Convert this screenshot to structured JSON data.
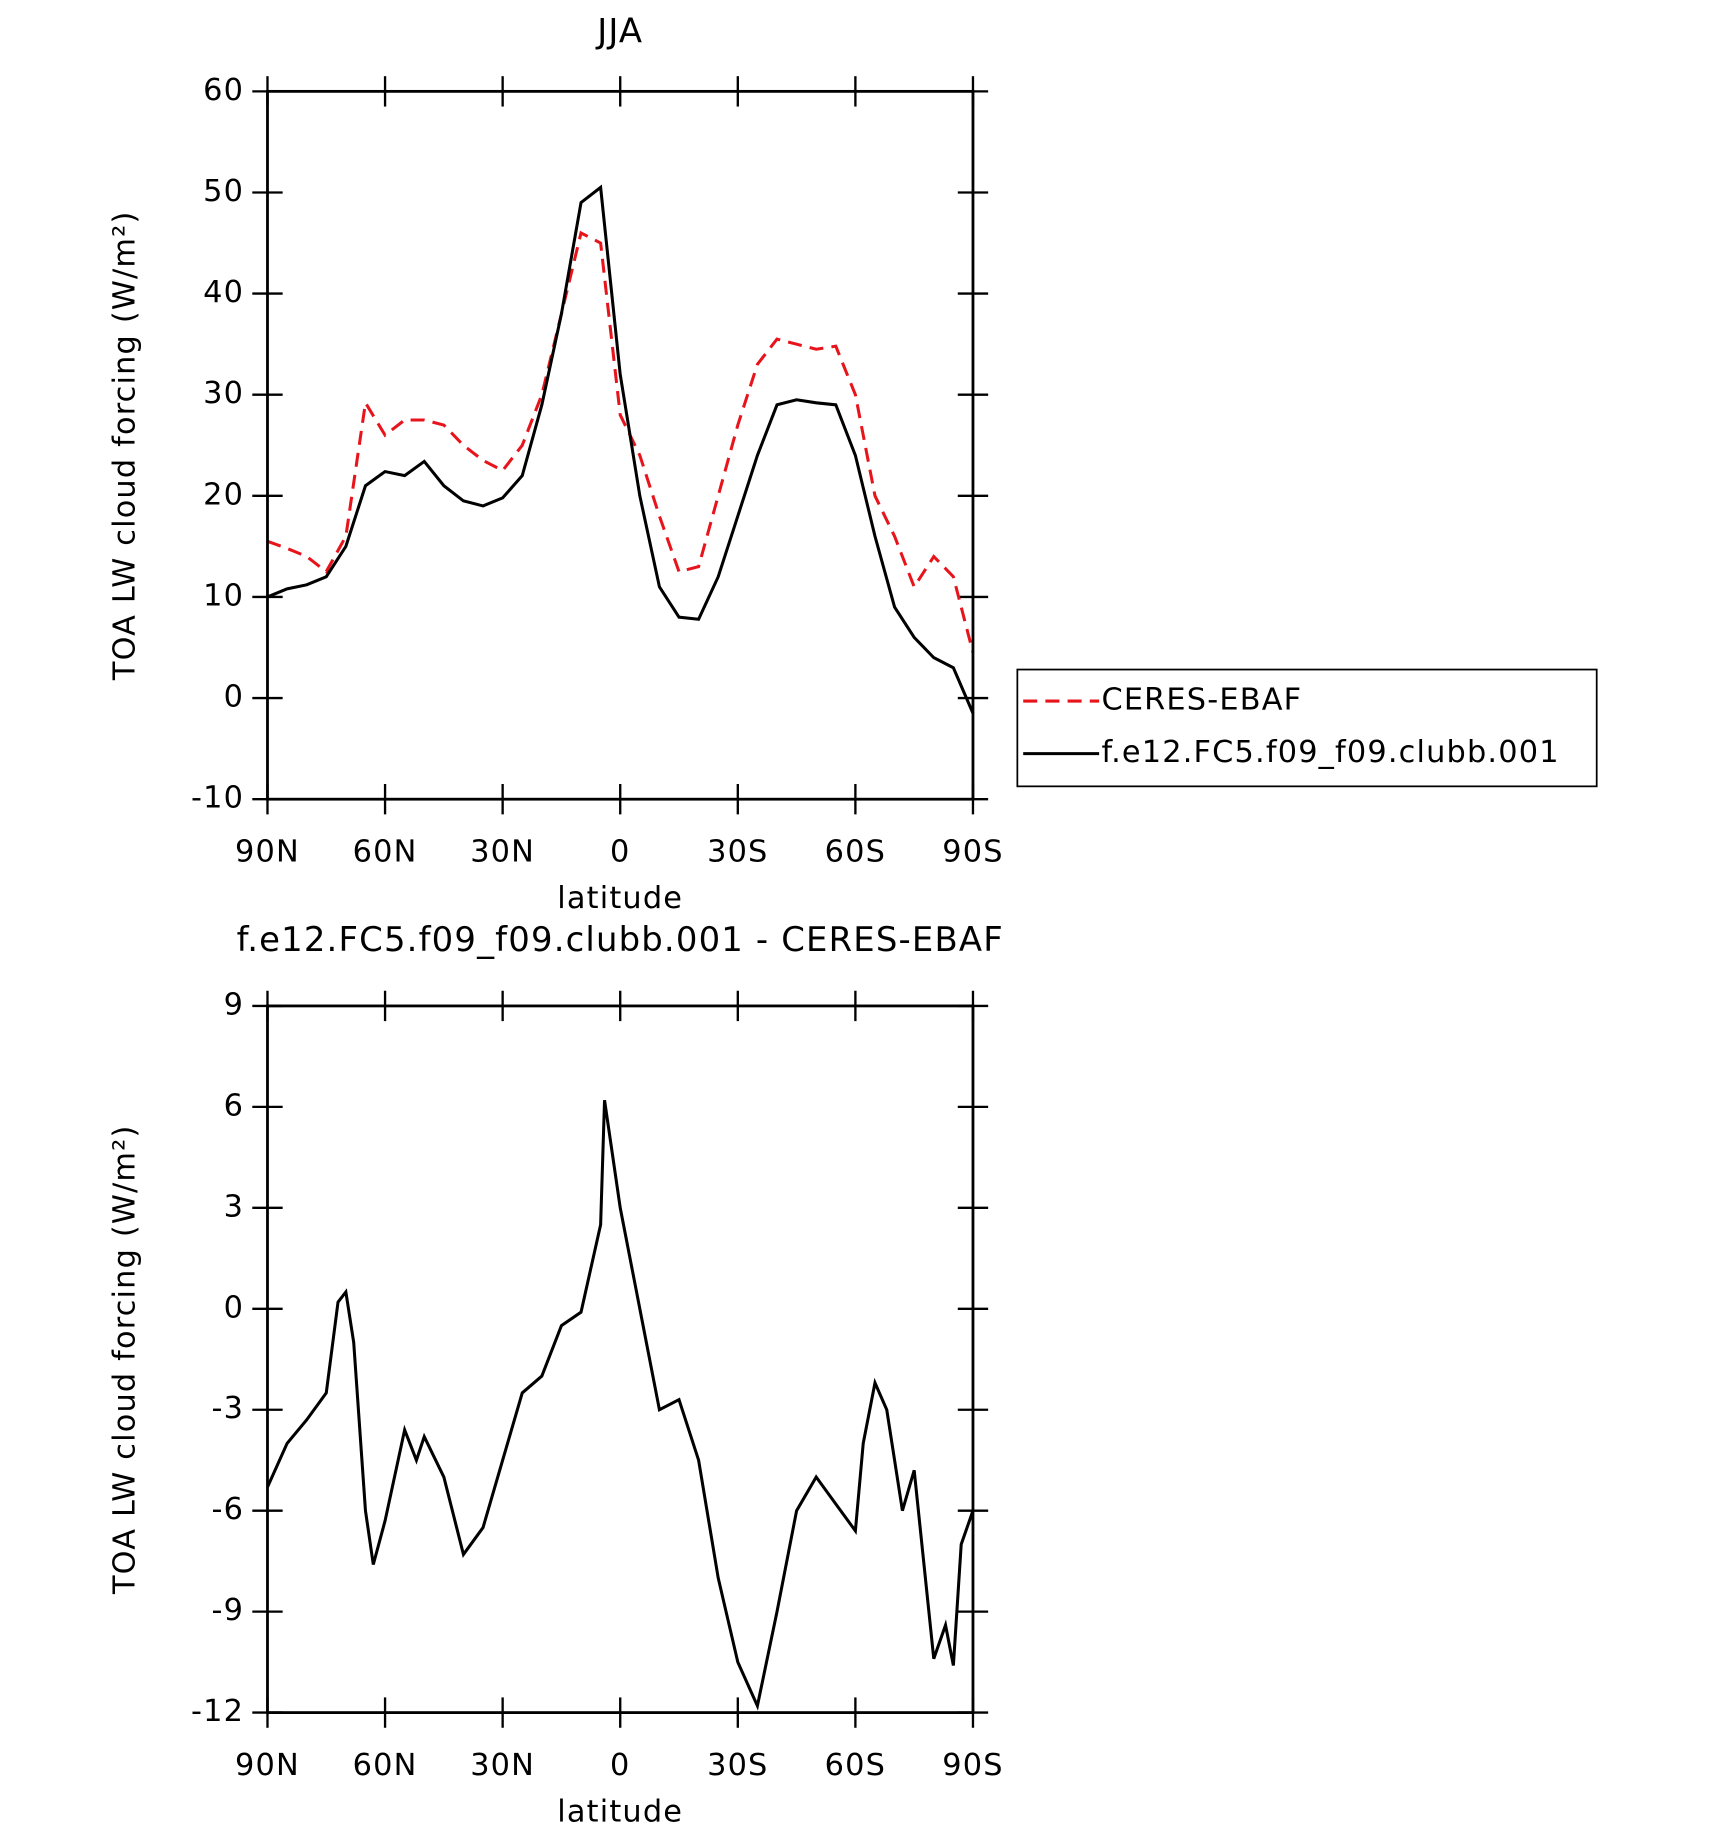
{
  "chart_data": [
    {
      "type": "line",
      "title": "JJA",
      "xlabel": "latitude",
      "ylabel": "TOA LW cloud forcing (W/m²)",
      "x": [
        90,
        85,
        80,
        75,
        70,
        65,
        60,
        55,
        50,
        45,
        40,
        35,
        30,
        25,
        20,
        15,
        10,
        5,
        0,
        -5,
        -10,
        -15,
        -20,
        -25,
        -30,
        -35,
        -40,
        -45,
        -50,
        -55,
        -60,
        -65,
        -70,
        -75,
        -80,
        -85,
        -90
      ],
      "series": [
        {
          "name": "CERES-EBAF",
          "color": "#e8141c",
          "dash": "dashed",
          "values": [
            15.5,
            14.8,
            14.0,
            12.5,
            16,
            29.2,
            26,
            27.5,
            27.5,
            27,
            25,
            23.5,
            22.5,
            25,
            30,
            38,
            46,
            45,
            28,
            24,
            18,
            12.5,
            13,
            20,
            27,
            33,
            35.5,
            35,
            34.5,
            34.8,
            30,
            20,
            16,
            11,
            14,
            12,
            4.5
          ]
        },
        {
          "name": "f.e12.FC5.f09_f09.clubb.001",
          "color": "#000000",
          "dash": "solid",
          "values": [
            10,
            10.8,
            11.2,
            12,
            15,
            21,
            22.4,
            22,
            23.4,
            21,
            19.5,
            19,
            19.8,
            22,
            29,
            38,
            49,
            50.5,
            32,
            20,
            11,
            8,
            7.8,
            12,
            18,
            24,
            29,
            29.5,
            29.2,
            29,
            24,
            16,
            9,
            6,
            4,
            3,
            -1.5
          ]
        }
      ],
      "xlim": [
        90,
        -90
      ],
      "xticks": [
        {
          "value": 90,
          "label": "90N"
        },
        {
          "value": 60,
          "label": "60N"
        },
        {
          "value": 30,
          "label": "30N"
        },
        0,
        {
          "value": -30,
          "label": "30S"
        },
        {
          "value": -60,
          "label": "60S"
        },
        {
          "value": -90,
          "label": "90S"
        }
      ],
      "ylim": [
        -10,
        60
      ],
      "yticks": [
        -10,
        0,
        10,
        20,
        30,
        40,
        50,
        60
      ],
      "legend": "right"
    },
    {
      "type": "line",
      "title": "f.e12.FC5.f09_f09.clubb.001 - CERES-EBAF",
      "xlabel": "latitude",
      "ylabel": "TOA LW cloud forcing (W/m²)",
      "x": [
        90,
        85,
        80,
        75,
        72,
        70,
        68,
        65,
        63,
        60,
        55,
        52,
        50,
        45,
        40,
        35,
        30,
        25,
        20,
        15,
        10,
        5,
        4,
        0,
        -5,
        -10,
        -15,
        -20,
        -25,
        -30,
        -35,
        -40,
        -45,
        -50,
        -55,
        -60,
        -62,
        -65,
        -68,
        -72,
        -75,
        -80,
        -83,
        -85,
        -87,
        -90
      ],
      "values": [
        -5.3,
        -4,
        -3.3,
        -2.5,
        0.2,
        0.5,
        -1,
        -6,
        -7.6,
        -6.3,
        -3.6,
        -4.5,
        -3.8,
        -5,
        -7.3,
        -6.5,
        -4.5,
        -2.5,
        -2,
        -0.5,
        -0.1,
        2.5,
        6.2,
        3,
        0,
        -3,
        -2.7,
        -4.5,
        -8,
        -10.5,
        -11.8,
        -9,
        -6,
        -5,
        -5.8,
        -6.6,
        -4,
        -2.2,
        -3,
        -6,
        -4.8,
        -10.4,
        -9.4,
        -10.6,
        -7,
        -6
      ],
      "color": "#000000",
      "xlim": [
        90,
        -90
      ],
      "xticks": [
        {
          "value": 90,
          "label": "90N"
        },
        {
          "value": 60,
          "label": "60N"
        },
        {
          "value": 30,
          "label": "30N"
        },
        0,
        {
          "value": -30,
          "label": "30S"
        },
        {
          "value": -60,
          "label": "60S"
        },
        {
          "value": -90,
          "label": "90S"
        }
      ],
      "ylim": [
        -12,
        9
      ],
      "yticks": [
        -12,
        -9,
        -6,
        -3,
        0,
        3,
        6,
        9
      ]
    }
  ]
}
